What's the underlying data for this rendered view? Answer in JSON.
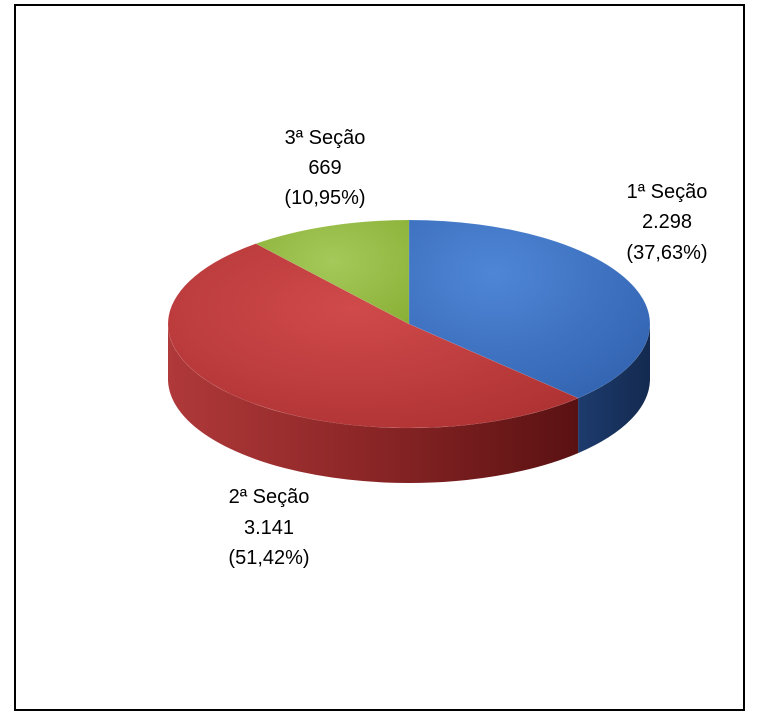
{
  "chart_data": {
    "type": "pie",
    "title": "",
    "slices": [
      {
        "name": "1ª Seção",
        "value_label": "2.298",
        "value": 2298,
        "percent_label": "(37,63%)",
        "percent": 37.63,
        "color": "#3b6fc0",
        "side_color": "#1d3b6e"
      },
      {
        "name": "2ª Seção",
        "value_label": "3.141",
        "value": 3141,
        "percent_label": "(51,42%)",
        "percent": 51.42,
        "color": "#c0393a",
        "side_color": "#7a1d1e"
      },
      {
        "name": "3ª Seção",
        "value_label": "669",
        "value": 669,
        "percent_label": "(10,95%)",
        "percent": 10.95,
        "color": "#94bb3c",
        "side_color": "#5c7a20"
      }
    ]
  }
}
